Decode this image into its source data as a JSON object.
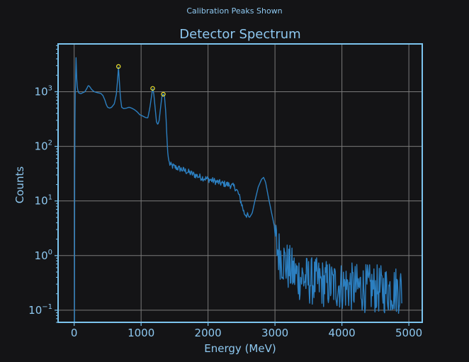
{
  "figure": {
    "suptitle": "Calibration Peaks Shown"
  },
  "colors": {
    "background": "#141416",
    "axes_frame": "#7cc4ee",
    "text": "#8ec8f0",
    "grid": "#7a7a7a",
    "series": "#2c7fc0",
    "marker": "#f2e830"
  },
  "chart_data": {
    "type": "line",
    "title": "Detector Spectrum",
    "xlabel": "Energy (MeV)",
    "ylabel": "Counts",
    "xlim": [
      -240,
      5200
    ],
    "ylim": [
      0.06,
      7500
    ],
    "yscale": "log",
    "grid": true,
    "xticks": [
      0,
      1000,
      2000,
      3000,
      4000,
      5000
    ],
    "xtick_labels": [
      "0",
      "1000",
      "2000",
      "3000",
      "4000",
      "5000"
    ],
    "yticks": [
      0.1,
      1,
      10,
      100,
      1000
    ],
    "ytick_labels": [
      {
        "base": "10",
        "exp": "−1"
      },
      {
        "base": "10",
        "exp": "0"
      },
      {
        "base": "10",
        "exp": "1"
      },
      {
        "base": "10",
        "exp": "2"
      },
      {
        "base": "10",
        "exp": "3"
      }
    ],
    "series": [
      {
        "name": "spectrum",
        "points": [
          [
            0,
            0.04
          ],
          [
            5,
            0.06
          ],
          [
            8,
            35
          ],
          [
            12,
            300
          ],
          [
            16,
            900
          ],
          [
            20,
            1500
          ],
          [
            24,
            2500
          ],
          [
            28,
            4200
          ],
          [
            32,
            3000
          ],
          [
            40,
            1500
          ],
          [
            50,
            1100
          ],
          [
            70,
            950
          ],
          [
            100,
            920
          ],
          [
            130,
            960
          ],
          [
            160,
            1000
          ],
          [
            190,
            1150
          ],
          [
            210,
            1300
          ],
          [
            230,
            1250
          ],
          [
            260,
            1100
          ],
          [
            300,
            1000
          ],
          [
            350,
            960
          ],
          [
            400,
            930
          ],
          [
            430,
            850
          ],
          [
            460,
            700
          ],
          [
            480,
            580
          ],
          [
            500,
            520
          ],
          [
            530,
            500
          ],
          [
            560,
            520
          ],
          [
            600,
            600
          ],
          [
            630,
            900
          ],
          [
            650,
            1700
          ],
          [
            662,
            2800
          ],
          [
            672,
            1800
          ],
          [
            690,
            800
          ],
          [
            710,
            520
          ],
          [
            740,
            490
          ],
          [
            780,
            500
          ],
          [
            820,
            520
          ],
          [
            860,
            500
          ],
          [
            900,
            470
          ],
          [
            940,
            430
          ],
          [
            980,
            380
          ],
          [
            1020,
            360
          ],
          [
            1060,
            340
          ],
          [
            1100,
            330
          ],
          [
            1130,
            500
          ],
          [
            1160,
            900
          ],
          [
            1173,
            1150
          ],
          [
            1190,
            900
          ],
          [
            1210,
            500
          ],
          [
            1230,
            280
          ],
          [
            1250,
            250
          ],
          [
            1270,
            300
          ],
          [
            1290,
            500
          ],
          [
            1310,
            800
          ],
          [
            1332,
            920
          ],
          [
            1350,
            800
          ],
          [
            1370,
            400
          ],
          [
            1385,
            150
          ],
          [
            1400,
            70
          ],
          [
            1420,
            50
          ],
          [
            1440,
            45
          ],
          [
            1500,
            42
          ],
          [
            1600,
            38
          ],
          [
            1700,
            34
          ],
          [
            1800,
            30
          ],
          [
            1900,
            27
          ],
          [
            2000,
            25
          ],
          [
            2100,
            23
          ],
          [
            2200,
            21
          ],
          [
            2300,
            20
          ],
          [
            2400,
            18
          ],
          [
            2450,
            14
          ],
          [
            2500,
            9
          ],
          [
            2540,
            6
          ],
          [
            2580,
            5.5
          ],
          [
            2620,
            5
          ],
          [
            2660,
            6
          ],
          [
            2700,
            10
          ],
          [
            2750,
            18
          ],
          [
            2800,
            25
          ],
          [
            2830,
            27
          ],
          [
            2860,
            22
          ],
          [
            2900,
            12
          ],
          [
            2950,
            6
          ],
          [
            2990,
            3.5
          ],
          [
            3000,
            2.5
          ],
          [
            3020,
            1.6
          ],
          [
            3050,
            1.2
          ],
          [
            3100,
            0.9
          ],
          [
            3200,
            0.6
          ],
          [
            3300,
            0.45
          ],
          [
            3500,
            0.35
          ],
          [
            3800,
            0.3
          ],
          [
            4200,
            0.26
          ],
          [
            4600,
            0.24
          ],
          [
            4900,
            0.24
          ]
        ],
        "noise": [
          {
            "x_range": [
              1420,
              2600
            ],
            "amplitude": 0.06
          },
          {
            "x_range": [
              3000,
              4900
            ],
            "amplitude": 0.45
          }
        ]
      }
    ],
    "markers": [
      {
        "label": "peak",
        "x": 662,
        "y": 2900
      },
      {
        "label": "peak",
        "x": 1173,
        "y": 1150
      },
      {
        "label": "peak",
        "x": 1332,
        "y": 900
      }
    ]
  }
}
